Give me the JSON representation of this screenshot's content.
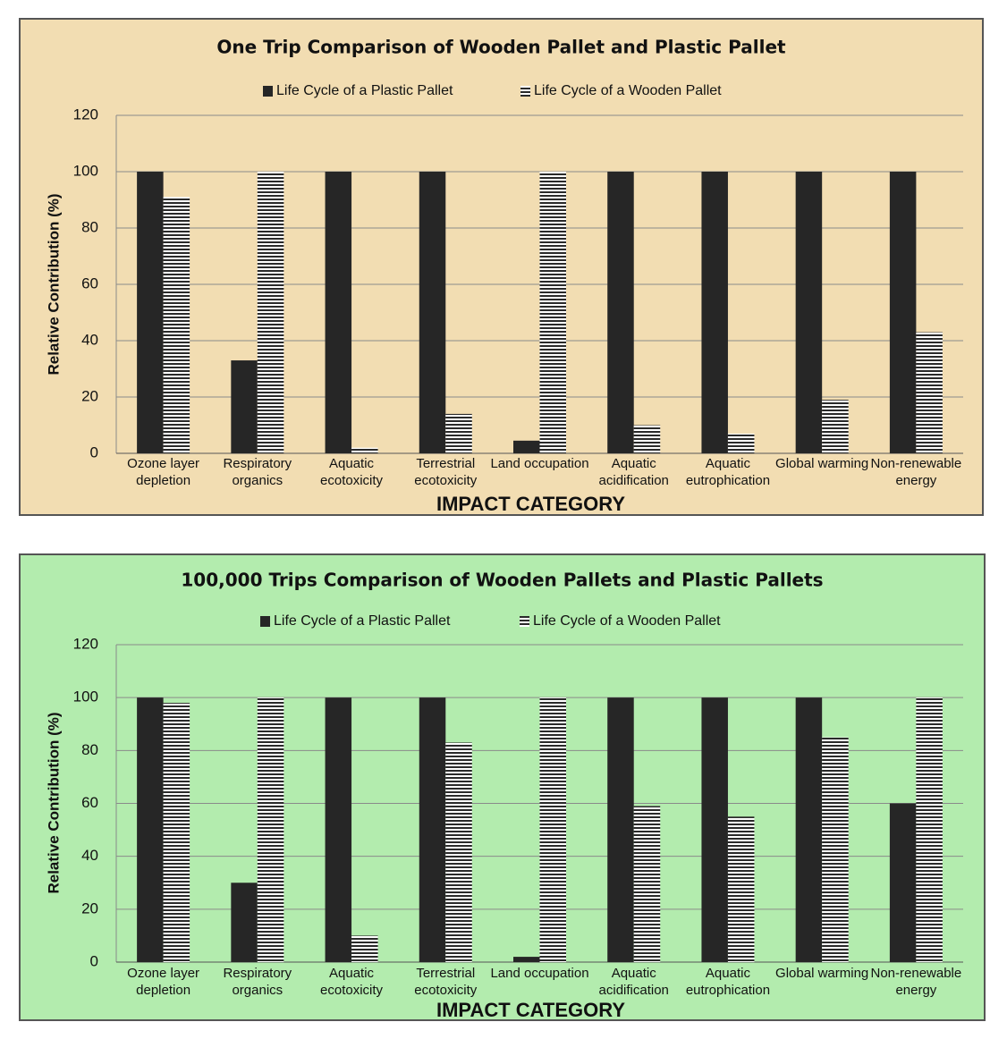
{
  "chart_data": [
    {
      "type": "bar",
      "title": "One Trip Comparison of Wooden Pallet and Plastic Pallet",
      "categories": [
        "Ozone layer depletion",
        "Respiratory organics",
        "Aquatic ecotoxicity",
        "Terrestrial ecotoxicity",
        "Land occupation",
        "Aquatic acidification",
        "Aquatic eutrophication",
        "Global warming",
        "Non-renewable energy"
      ],
      "series": [
        {
          "name": "Life Cycle of a Plastic Pallet",
          "color": "#262626",
          "values": [
            100,
            33,
            100,
            100,
            4.5,
            100,
            100,
            100,
            100
          ]
        },
        {
          "name": "Life Cycle of a Wooden Pallet",
          "color": "#2a2a2a",
          "pattern": "horizontal-stripes",
          "values": [
            91,
            100,
            2,
            14,
            100,
            10,
            7,
            19,
            43
          ]
        }
      ],
      "ylabel": "Relative Contribution (%)",
      "xlabel": "IMPACT CATEGORY",
      "ylim": [
        0,
        120
      ],
      "yticks": [
        0,
        20,
        40,
        60,
        80,
        100,
        120
      ],
      "grid": true,
      "background": "#f2ddb2"
    },
    {
      "type": "bar",
      "title": "100,000 Trips Comparison of Wooden Pallets and Plastic Pallets",
      "categories": [
        "Ozone layer depletion",
        "Respiratory organics",
        "Aquatic ecotoxicity",
        "Terrestrial ecotoxicity",
        "Land occupation",
        "Aquatic acidification",
        "Aquatic eutrophication",
        "Global warming",
        "Non-renewable energy"
      ],
      "series": [
        {
          "name": "Life Cycle of a Plastic Pallet",
          "color": "#262626",
          "values": [
            100,
            30,
            100,
            100,
            2,
            100,
            100,
            100,
            60
          ]
        },
        {
          "name": "Life Cycle of a Wooden Pallet",
          "color": "#2a2a2a",
          "pattern": "horizontal-stripes",
          "values": [
            98,
            100,
            10,
            83,
            100,
            59,
            55,
            85,
            100
          ]
        }
      ],
      "ylabel": "Relative Contribution (%)",
      "xlabel": "IMPACT CATEGORY",
      "ylim": [
        0,
        120
      ],
      "yticks": [
        0,
        20,
        40,
        60,
        80,
        100,
        120
      ],
      "grid": true,
      "background": "#b3ecae"
    }
  ]
}
